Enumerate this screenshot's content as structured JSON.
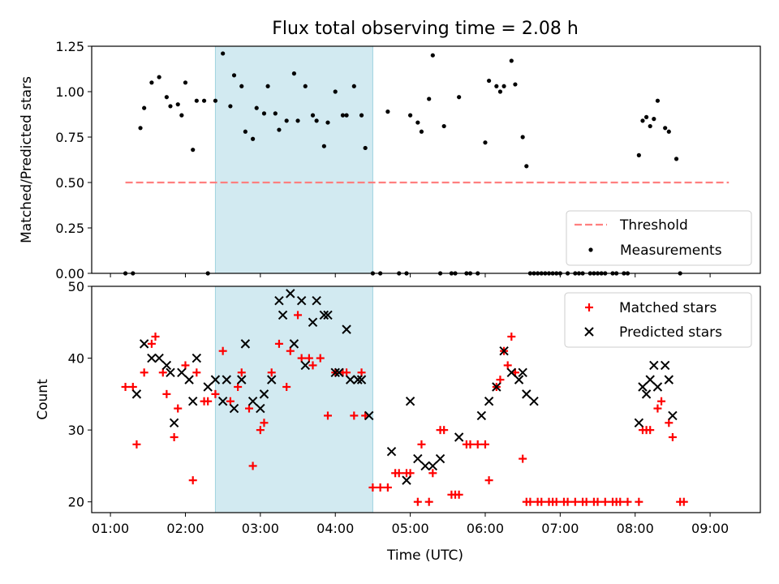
{
  "figure": {
    "title": "Flux total observing time = 2.08 h",
    "xlabel": "Time (UTC)"
  },
  "chart_data": [
    {
      "type": "scatter",
      "ylabel": "Matched/Predicted stars",
      "ylim": [
        0,
        1.25
      ],
      "y_ticks": [
        "0.00",
        "0.25",
        "0.50",
        "0.75",
        "1.00",
        "1.25"
      ],
      "x_axis": "time (hours UTC)",
      "xlim": [
        0.75,
        9.67
      ],
      "x_ticks": [],
      "shaded_region": {
        "from": 2.4,
        "to": 4.5,
        "color": "#add8e6"
      },
      "threshold": {
        "name": "Threshold",
        "value": 0.5,
        "x_from": 1.2,
        "x_to": 9.25,
        "color": "#ff7f7f",
        "style": "dashed"
      },
      "series": [
        {
          "name": "Measurements",
          "color": "#000000",
          "marker": "dot",
          "points": [
            [
              1.2,
              0
            ],
            [
              1.3,
              0
            ],
            [
              1.4,
              0.8
            ],
            [
              1.45,
              0.91
            ],
            [
              1.55,
              1.05
            ],
            [
              1.65,
              1.08
            ],
            [
              1.75,
              0.97
            ],
            [
              1.8,
              0.92
            ],
            [
              1.9,
              0.93
            ],
            [
              1.95,
              0.87
            ],
            [
              2.0,
              1.05
            ],
            [
              2.1,
              0.68
            ],
            [
              2.15,
              0.95
            ],
            [
              2.25,
              0.95
            ],
            [
              2.3,
              0
            ],
            [
              2.4,
              0.95
            ],
            [
              2.5,
              1.21
            ],
            [
              2.6,
              0.92
            ],
            [
              2.65,
              1.09
            ],
            [
              2.75,
              1.03
            ],
            [
              2.8,
              0.78
            ],
            [
              2.9,
              0.74
            ],
            [
              2.95,
              0.91
            ],
            [
              3.05,
              0.88
            ],
            [
              3.1,
              1.03
            ],
            [
              3.2,
              0.88
            ],
            [
              3.25,
              0.79
            ],
            [
              3.35,
              0.84
            ],
            [
              3.45,
              1.1
            ],
            [
              3.5,
              0.84
            ],
            [
              3.6,
              1.03
            ],
            [
              3.7,
              0.87
            ],
            [
              3.75,
              0.84
            ],
            [
              3.85,
              0.7
            ],
            [
              3.9,
              0.83
            ],
            [
              4.0,
              1.0
            ],
            [
              4.1,
              0.87
            ],
            [
              4.15,
              0.87
            ],
            [
              4.25,
              1.03
            ],
            [
              4.35,
              0.87
            ],
            [
              4.4,
              0.69
            ],
            [
              4.5,
              0
            ],
            [
              4.6,
              0
            ],
            [
              4.7,
              0.89
            ],
            [
              4.85,
              0
            ],
            [
              4.95,
              0
            ],
            [
              5.0,
              0.87
            ],
            [
              5.1,
              0.83
            ],
            [
              5.15,
              0.78
            ],
            [
              5.25,
              0.96
            ],
            [
              5.3,
              1.2
            ],
            [
              5.4,
              0
            ],
            [
              5.45,
              0.81
            ],
            [
              5.55,
              0
            ],
            [
              5.6,
              0
            ],
            [
              5.65,
              0.97
            ],
            [
              5.75,
              0
            ],
            [
              5.8,
              0
            ],
            [
              5.9,
              0
            ],
            [
              6.0,
              0.72
            ],
            [
              6.05,
              1.06
            ],
            [
              6.15,
              1.03
            ],
            [
              6.2,
              1.0
            ],
            [
              6.25,
              1.03
            ],
            [
              6.35,
              1.17
            ],
            [
              6.4,
              1.04
            ],
            [
              6.5,
              0.75
            ],
            [
              6.55,
              0.59
            ],
            [
              6.6,
              0
            ],
            [
              6.65,
              0
            ],
            [
              6.7,
              0
            ],
            [
              6.75,
              0
            ],
            [
              6.8,
              0
            ],
            [
              6.85,
              0
            ],
            [
              6.9,
              0
            ],
            [
              6.95,
              0
            ],
            [
              7.0,
              0
            ],
            [
              7.1,
              0
            ],
            [
              7.2,
              0
            ],
            [
              7.25,
              0
            ],
            [
              7.3,
              0
            ],
            [
              7.4,
              0
            ],
            [
              7.45,
              0
            ],
            [
              7.5,
              0
            ],
            [
              7.55,
              0
            ],
            [
              7.6,
              0
            ],
            [
              7.7,
              0
            ],
            [
              7.75,
              0
            ],
            [
              7.85,
              0
            ],
            [
              7.9,
              0
            ],
            [
              8.05,
              0.65
            ],
            [
              8.1,
              0.84
            ],
            [
              8.15,
              0.86
            ],
            [
              8.2,
              0.81
            ],
            [
              8.25,
              0.85
            ],
            [
              8.3,
              0.95
            ],
            [
              8.4,
              0.8
            ],
            [
              8.45,
              0.78
            ],
            [
              8.55,
              0.63
            ],
            [
              8.6,
              0
            ]
          ]
        }
      ]
    },
    {
      "type": "scatter",
      "ylabel": "Count",
      "ylim": [
        18.5,
        50
      ],
      "y_ticks": [
        "20",
        "30",
        "40",
        "50"
      ],
      "x_axis": "time (hours UTC)",
      "xlim": [
        0.75,
        9.67
      ],
      "x_ticks": [
        "01:00",
        "02:00",
        "03:00",
        "04:00",
        "05:00",
        "06:00",
        "07:00",
        "08:00",
        "09:00"
      ],
      "shaded_region": {
        "from": 2.4,
        "to": 4.5,
        "color": "#add8e6"
      },
      "series": [
        {
          "name": "Matched stars",
          "color": "#ff0000",
          "marker": "plus",
          "points": [
            [
              1.2,
              36
            ],
            [
              1.3,
              36
            ],
            [
              1.35,
              28
            ],
            [
              1.45,
              38
            ],
            [
              1.55,
              42
            ],
            [
              1.6,
              43
            ],
            [
              1.7,
              38
            ],
            [
              1.75,
              35
            ],
            [
              1.85,
              29
            ],
            [
              1.9,
              33
            ],
            [
              2.0,
              39
            ],
            [
              2.1,
              23
            ],
            [
              2.15,
              38
            ],
            [
              2.25,
              34
            ],
            [
              2.3,
              34
            ],
            [
              2.4,
              35
            ],
            [
              2.5,
              41
            ],
            [
              2.6,
              34
            ],
            [
              2.7,
              36
            ],
            [
              2.75,
              38
            ],
            [
              2.85,
              33
            ],
            [
              2.9,
              25
            ],
            [
              3.0,
              30
            ],
            [
              3.05,
              31
            ],
            [
              3.15,
              38
            ],
            [
              3.25,
              42
            ],
            [
              3.35,
              36
            ],
            [
              3.4,
              41
            ],
            [
              3.5,
              46
            ],
            [
              3.55,
              40
            ],
            [
              3.65,
              40
            ],
            [
              3.7,
              39
            ],
            [
              3.8,
              40
            ],
            [
              3.9,
              32
            ],
            [
              4.0,
              38
            ],
            [
              4.1,
              38
            ],
            [
              4.15,
              38
            ],
            [
              4.25,
              32
            ],
            [
              4.35,
              38
            ],
            [
              4.4,
              32
            ],
            [
              4.5,
              22
            ],
            [
              4.6,
              22
            ],
            [
              4.7,
              22
            ],
            [
              4.8,
              24
            ],
            [
              4.85,
              24
            ],
            [
              4.95,
              24
            ],
            [
              5.0,
              24
            ],
            [
              5.1,
              20
            ],
            [
              5.15,
              28
            ],
            [
              5.25,
              20
            ],
            [
              5.3,
              24
            ],
            [
              5.4,
              30
            ],
            [
              5.45,
              30
            ],
            [
              5.55,
              21
            ],
            [
              5.6,
              21
            ],
            [
              5.65,
              21
            ],
            [
              5.75,
              28
            ],
            [
              5.8,
              28
            ],
            [
              5.9,
              28
            ],
            [
              6.0,
              28
            ],
            [
              6.05,
              23
            ],
            [
              6.15,
              36
            ],
            [
              6.2,
              37
            ],
            [
              6.25,
              41
            ],
            [
              6.3,
              39
            ],
            [
              6.35,
              43
            ],
            [
              6.4,
              38
            ],
            [
              6.5,
              26
            ],
            [
              6.55,
              20
            ],
            [
              6.6,
              20
            ],
            [
              6.7,
              20
            ],
            [
              6.75,
              20
            ],
            [
              6.85,
              20
            ],
            [
              6.9,
              20
            ],
            [
              6.95,
              20
            ],
            [
              7.05,
              20
            ],
            [
              7.1,
              20
            ],
            [
              7.2,
              20
            ],
            [
              7.3,
              20
            ],
            [
              7.35,
              20
            ],
            [
              7.45,
              20
            ],
            [
              7.5,
              20
            ],
            [
              7.6,
              20
            ],
            [
              7.7,
              20
            ],
            [
              7.75,
              20
            ],
            [
              7.8,
              20
            ],
            [
              7.9,
              20
            ],
            [
              8.05,
              20
            ],
            [
              8.1,
              30
            ],
            [
              8.15,
              30
            ],
            [
              8.2,
              30
            ],
            [
              8.3,
              33
            ],
            [
              8.35,
              34
            ],
            [
              8.45,
              31
            ],
            [
              8.5,
              29
            ],
            [
              8.6,
              20
            ],
            [
              8.65,
              20
            ]
          ]
        },
        {
          "name": "Predicted stars",
          "color": "#000000",
          "marker": "x",
          "points": [
            [
              1.35,
              35
            ],
            [
              1.45,
              42
            ],
            [
              1.55,
              40
            ],
            [
              1.65,
              40
            ],
            [
              1.75,
              39
            ],
            [
              1.8,
              38
            ],
            [
              1.85,
              31
            ],
            [
              1.95,
              38
            ],
            [
              2.05,
              37
            ],
            [
              2.1,
              34
            ],
            [
              2.15,
              40
            ],
            [
              2.3,
              36
            ],
            [
              2.4,
              37
            ],
            [
              2.5,
              34
            ],
            [
              2.55,
              37
            ],
            [
              2.65,
              33
            ],
            [
              2.75,
              37
            ],
            [
              2.8,
              42
            ],
            [
              2.9,
              34
            ],
            [
              3.0,
              33
            ],
            [
              3.05,
              35
            ],
            [
              3.15,
              37
            ],
            [
              3.25,
              48
            ],
            [
              3.3,
              46
            ],
            [
              3.4,
              49
            ],
            [
              3.45,
              42
            ],
            [
              3.55,
              48
            ],
            [
              3.6,
              39
            ],
            [
              3.7,
              45
            ],
            [
              3.75,
              48
            ],
            [
              3.85,
              46
            ],
            [
              3.9,
              46
            ],
            [
              4.0,
              38
            ],
            [
              4.05,
              38
            ],
            [
              4.15,
              44
            ],
            [
              4.2,
              37
            ],
            [
              4.3,
              37
            ],
            [
              4.35,
              37
            ],
            [
              4.45,
              32
            ],
            [
              4.75,
              27
            ],
            [
              4.95,
              23
            ],
            [
              5.0,
              34
            ],
            [
              5.1,
              26
            ],
            [
              5.2,
              25
            ],
            [
              5.3,
              25
            ],
            [
              5.4,
              26
            ],
            [
              5.65,
              29
            ],
            [
              5.95,
              32
            ],
            [
              6.05,
              34
            ],
            [
              6.15,
              36
            ],
            [
              6.25,
              41
            ],
            [
              6.35,
              38
            ],
            [
              6.45,
              37
            ],
            [
              6.5,
              38
            ],
            [
              6.55,
              35
            ],
            [
              6.65,
              34
            ],
            [
              8.05,
              31
            ],
            [
              8.1,
              36
            ],
            [
              8.15,
              35
            ],
            [
              8.2,
              37
            ],
            [
              8.25,
              39
            ],
            [
              8.3,
              36
            ],
            [
              8.4,
              39
            ],
            [
              8.45,
              37
            ],
            [
              8.5,
              32
            ]
          ]
        }
      ]
    }
  ]
}
